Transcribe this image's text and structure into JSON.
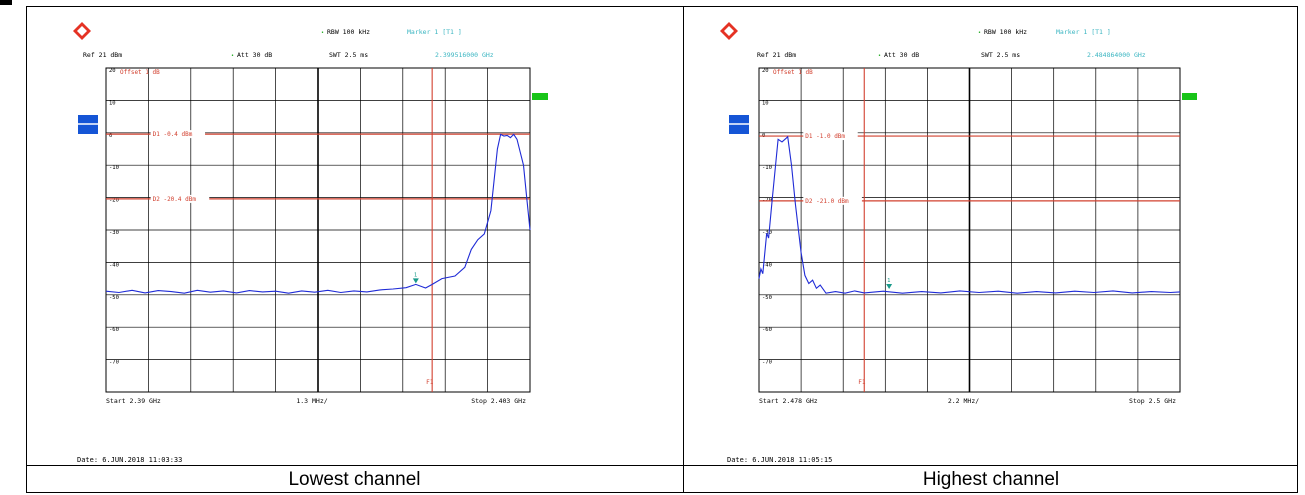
{
  "captions": [
    "Lowest channel",
    "Highest channel"
  ],
  "colors": {
    "trace": "#1f2bd6",
    "lines": "#d2402f",
    "cyan": "#3cb6c2",
    "grid": "#000000",
    "blue_tab": "#1555d6",
    "green_tab": "#18c418"
  },
  "chart_data": [
    {
      "type": "line",
      "logo_icon": "rohde-schwarz-logo-icon",
      "header": {
        "rbw": "RBW 100 kHz",
        "marker": "Marker 1 [T1 ]",
        "ref": "Ref  21 dBm",
        "att": "Att   30 dB",
        "swt": "SWT 2.5 ms",
        "marker_freq": "2.399516000 GHz",
        "offset": "Offset  1 dB"
      },
      "y_ticks": [
        "20",
        "10",
        "0",
        "-10",
        "-20",
        "-30",
        "-40",
        "-50",
        "-60",
        "-70"
      ],
      "ylim": [
        -80,
        20
      ],
      "xlim": [
        2.39,
        2.403
      ],
      "x_start": "Start 2.39 GHz",
      "x_div": "1.3 MHz/",
      "x_stop": "Stop 2.403 GHz",
      "d1": {
        "label": "D1  -0.4 dBm",
        "value": -0.4
      },
      "d2": {
        "label": "D2  -20.4 dBm",
        "value": -20.4
      },
      "f1": {
        "label": "F1",
        "x": 2.4
      },
      "marker1": {
        "label": "1",
        "x": 2.3995,
        "y": -46.8
      },
      "date": "Date:  6.JUN.2018   11:03:33",
      "trace": [
        [
          2.39,
          -48.9
        ],
        [
          2.3904,
          -49.3
        ],
        [
          2.3908,
          -48.6
        ],
        [
          2.3912,
          -49.4
        ],
        [
          2.3916,
          -48.7
        ],
        [
          2.392,
          -49.0
        ],
        [
          2.3924,
          -49.5
        ],
        [
          2.3928,
          -48.6
        ],
        [
          2.3932,
          -49.2
        ],
        [
          2.3936,
          -48.8
        ],
        [
          2.394,
          -49.4
        ],
        [
          2.3944,
          -48.7
        ],
        [
          2.3948,
          -49.1
        ],
        [
          2.3952,
          -48.9
        ],
        [
          2.3956,
          -49.5
        ],
        [
          2.396,
          -48.8
        ],
        [
          2.3964,
          -49.2
        ],
        [
          2.3968,
          -48.6
        ],
        [
          2.3972,
          -49.3
        ],
        [
          2.3976,
          -48.8
        ],
        [
          2.398,
          -49.1
        ],
        [
          2.3984,
          -48.5
        ],
        [
          2.3988,
          -48.2
        ],
        [
          2.3992,
          -47.8
        ],
        [
          2.3995,
          -46.8
        ],
        [
          2.3998,
          -47.9
        ],
        [
          2.4,
          -46.8
        ],
        [
          2.4003,
          -45.0
        ],
        [
          2.4007,
          -44.2
        ],
        [
          2.401,
          -41.5
        ],
        [
          2.4012,
          -36.0
        ],
        [
          2.4014,
          -33.0
        ],
        [
          2.4016,
          -31.2
        ],
        [
          2.4018,
          -24.0
        ],
        [
          2.402,
          -5.0
        ],
        [
          2.4021,
          -0.5
        ],
        [
          2.4022,
          -1.0
        ],
        [
          2.4023,
          -0.8
        ],
        [
          2.4024,
          -1.5
        ],
        [
          2.4025,
          -0.5
        ],
        [
          2.4026,
          -2.0
        ],
        [
          2.4028,
          -10.0
        ],
        [
          2.4029,
          -20.0
        ],
        [
          2.403,
          -30.0
        ]
      ]
    },
    {
      "type": "line",
      "logo_icon": "rohde-schwarz-logo-icon",
      "header": {
        "rbw": "RBW 100 kHz",
        "marker": "Marker 1 [T1 ]",
        "ref": "Ref  21 dBm",
        "att": "Att   30 dB",
        "swt": "SWT 2.5 ms",
        "marker_freq": "2.484864000 GHz",
        "offset": "Offset  1 dB"
      },
      "y_ticks": [
        "20",
        "10",
        "0",
        "-10",
        "-20",
        "-30",
        "-40",
        "-50",
        "-60",
        "-70"
      ],
      "ylim": [
        -80,
        20
      ],
      "xlim": [
        2.478,
        2.5
      ],
      "x_start": "Start 2.478 GHz",
      "x_div": "2.2 MHz/",
      "x_stop": "Stop 2.5 GHz",
      "d1": {
        "label": "D1  -1.0 dBm",
        "value": -1.0
      },
      "d2": {
        "label": "D2  -21.0 dBm",
        "value": -21.0
      },
      "f1": {
        "label": "F1",
        "x": 2.4835
      },
      "marker1": {
        "label": "1",
        "x": 2.4848,
        "y": -48.5
      },
      "date": "Date:  6.JUN.2018   11:05:15",
      "trace": [
        [
          2.478,
          -45.0
        ],
        [
          2.4781,
          -42.0
        ],
        [
          2.4782,
          -43.5
        ],
        [
          2.4784,
          -31.0
        ],
        [
          2.4785,
          -32.5
        ],
        [
          2.4787,
          -20.0
        ],
        [
          2.4789,
          -8.0
        ],
        [
          2.479,
          -2.0
        ],
        [
          2.4792,
          -2.8
        ],
        [
          2.4794,
          -1.8
        ],
        [
          2.4795,
          -1.2
        ],
        [
          2.4797,
          -10.0
        ],
        [
          2.4799,
          -22.0
        ],
        [
          2.4801,
          -32.0
        ],
        [
          2.4802,
          -37.0
        ],
        [
          2.4804,
          -44.0
        ],
        [
          2.4806,
          -46.5
        ],
        [
          2.4808,
          -45.5
        ],
        [
          2.481,
          -48.0
        ],
        [
          2.4812,
          -47.0
        ],
        [
          2.4815,
          -49.5
        ],
        [
          2.482,
          -49.0
        ],
        [
          2.4825,
          -49.5
        ],
        [
          2.483,
          -48.8
        ],
        [
          2.4835,
          -49.4
        ],
        [
          2.4845,
          -48.9
        ],
        [
          2.4855,
          -49.5
        ],
        [
          2.4865,
          -49.0
        ],
        [
          2.4875,
          -49.4
        ],
        [
          2.4885,
          -48.8
        ],
        [
          2.4895,
          -49.3
        ],
        [
          2.4905,
          -48.9
        ],
        [
          2.4915,
          -49.5
        ],
        [
          2.4925,
          -49.0
        ],
        [
          2.4935,
          -49.4
        ],
        [
          2.4945,
          -48.9
        ],
        [
          2.4955,
          -49.3
        ],
        [
          2.4965,
          -48.8
        ],
        [
          2.4975,
          -49.4
        ],
        [
          2.4985,
          -49.0
        ],
        [
          2.4995,
          -49.3
        ],
        [
          2.5,
          -49.1
        ]
      ]
    }
  ]
}
